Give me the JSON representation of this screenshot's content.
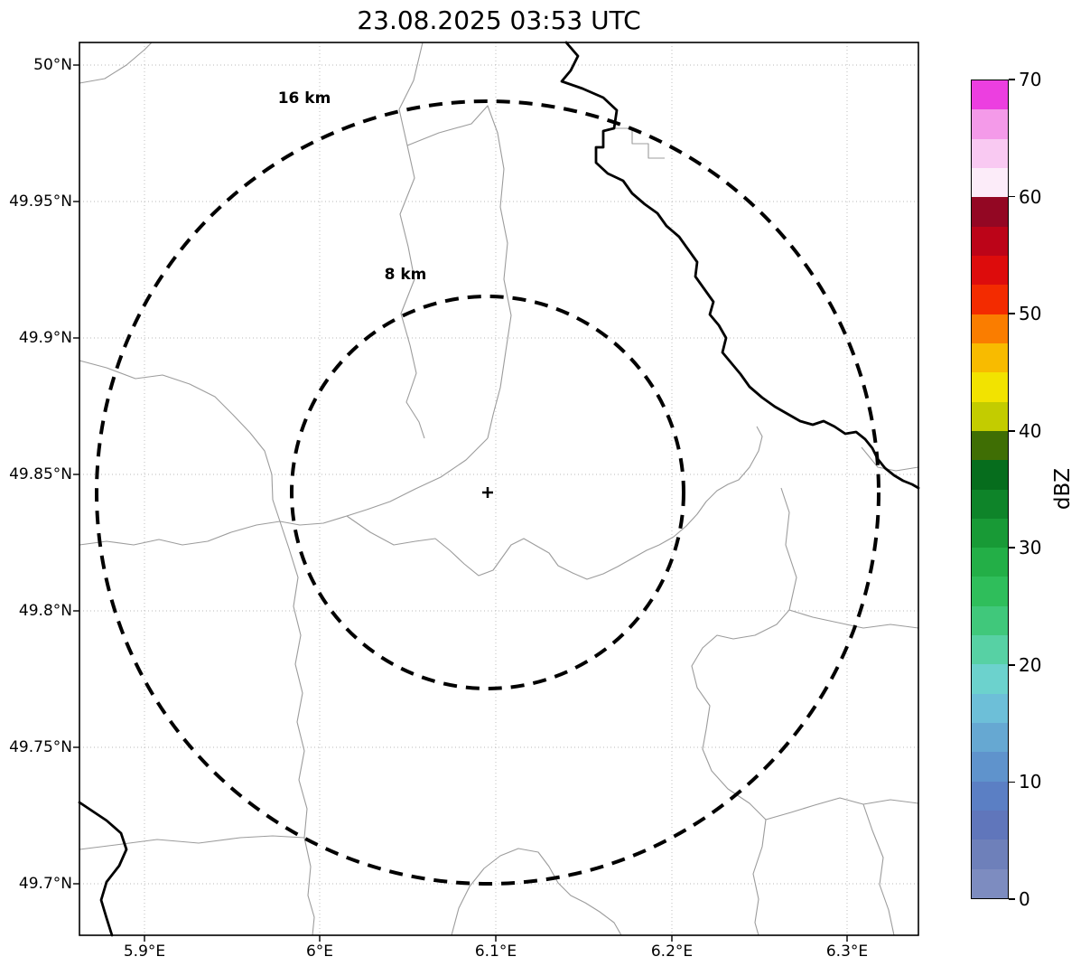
{
  "title": "23.08.2025 03:53 UTC",
  "map": {
    "x_tick_labels": [
      "5.9°E",
      "6°E",
      "6.1°E",
      "6.2°E",
      "6.3°E"
    ],
    "y_tick_labels": [
      "50°N",
      "49.95°N",
      "49.9°N",
      "49.85°N",
      "49.8°N",
      "49.75°N",
      "49.7°N"
    ],
    "range_rings": [
      {
        "label": "16 km",
        "radius_km": 16
      },
      {
        "label": "8 km",
        "radius_km": 8
      }
    ],
    "center_marker": "+"
  },
  "colorbar": {
    "axis_label": "dBZ",
    "tick_labels": [
      "0",
      "10",
      "20",
      "30",
      "40",
      "50",
      "60",
      "70"
    ],
    "tick_values": [
      0,
      10,
      20,
      30,
      40,
      50,
      60,
      70
    ],
    "min": 0,
    "max": 70,
    "segment_step": 2.5,
    "colors_bottom_to_top": [
      "#7d8cc0",
      "#6e80ba",
      "#6076bb",
      "#5b7fc4",
      "#5f93cc",
      "#66a8d2",
      "#6dbfd8",
      "#6cd2cd",
      "#57d1a4",
      "#40c87b",
      "#2fbe5b",
      "#23af47",
      "#189a36",
      "#0e8429",
      "#066d1d",
      "#3f6e04",
      "#c3cc00",
      "#f2e300",
      "#f8bb00",
      "#fa7d00",
      "#f32b00",
      "#dd0c0c",
      "#bc0418",
      "#930723",
      "#fcecf9",
      "#f9c9f2",
      "#f49ae9",
      "#ec3fe0"
    ]
  },
  "styles": {
    "boundary_line": "#9c9c9c",
    "river_line": "#000000",
    "grid_line": "#b8b8b8",
    "ring_line": "#000000",
    "frame_line": "#000000"
  }
}
